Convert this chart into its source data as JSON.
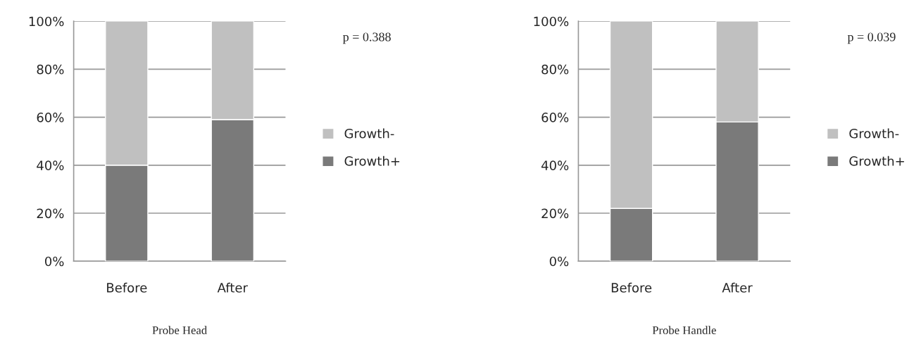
{
  "chart_data": [
    {
      "type": "bar",
      "title": "Probe Head",
      "stacked": true,
      "categories": [
        "Before",
        "After"
      ],
      "series": [
        {
          "name": "Growth+",
          "color": "#7a7a7a",
          "values": [
            40,
            59
          ]
        },
        {
          "name": "Growth-",
          "color": "#c0c0c0",
          "values": [
            60,
            41
          ]
        }
      ],
      "ylim": [
        0,
        100
      ],
      "yticks": [
        {
          "value": 0,
          "label": "0%"
        },
        {
          "value": 20,
          "label": "20%"
        },
        {
          "value": 40,
          "label": "40%"
        },
        {
          "value": 60,
          "label": "60%"
        },
        {
          "value": 80,
          "label": "80%"
        },
        {
          "value": 100,
          "label": "100%"
        }
      ],
      "grid": "y",
      "legend": "right",
      "annotations": [
        "p = 0.388"
      ]
    },
    {
      "type": "bar",
      "title": "Probe Handle",
      "stacked": true,
      "categories": [
        "Before",
        "After"
      ],
      "series": [
        {
          "name": "Growth+",
          "color": "#7a7a7a",
          "values": [
            22,
            58
          ]
        },
        {
          "name": "Growth-",
          "color": "#c0c0c0",
          "values": [
            78,
            42
          ]
        }
      ],
      "ylim": [
        0,
        100
      ],
      "yticks": [
        {
          "value": 0,
          "label": "0%"
        },
        {
          "value": 20,
          "label": "20%"
        },
        {
          "value": 40,
          "label": "40%"
        },
        {
          "value": 60,
          "label": "60%"
        },
        {
          "value": 80,
          "label": "80%"
        },
        {
          "value": 100,
          "label": "100%"
        }
      ],
      "grid": "y",
      "legend": "right",
      "annotations": [
        "p = 0.039"
      ]
    }
  ]
}
